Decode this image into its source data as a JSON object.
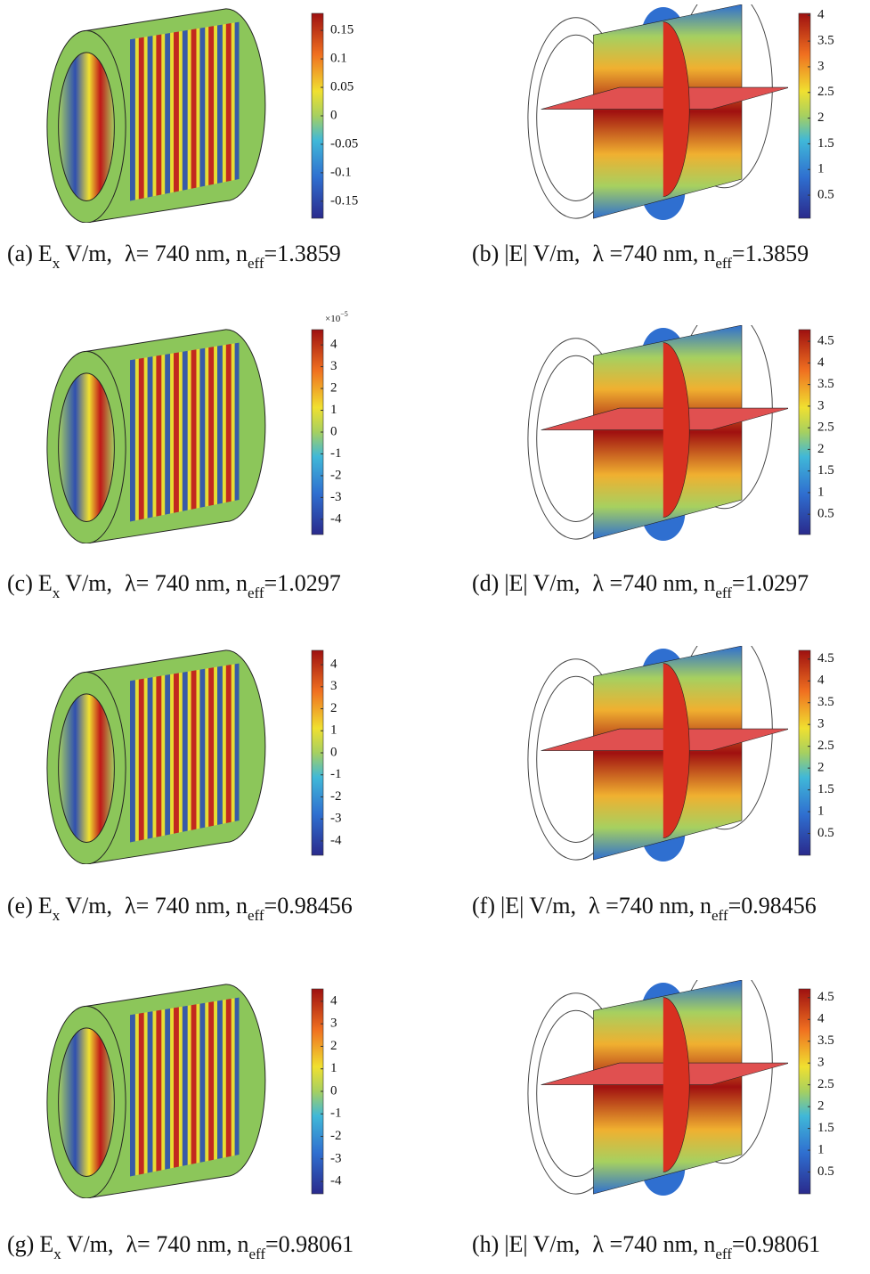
{
  "panels": [
    {
      "colorbar": {
        "lim": [
          -0.18,
          0.18
        ],
        "ticks": [
          0.15,
          0.1,
          0.05,
          0,
          -0.05,
          -0.1,
          -0.15
        ]
      },
      "caption": {
        "label": "(a)",
        "field": "E",
        "field_sub": "x",
        "unit": "V/m,",
        "wavelength": "λ= 740 nm,",
        "neff": "n",
        "neff_sub": "eff",
        "neff_value": "=1.3859"
      }
    },
    {
      "colorbar": {
        "lim": [
          0.05,
          4.04
        ],
        "ticks": [
          4,
          3.5,
          3,
          2.5,
          2,
          1.5,
          1,
          0.5
        ]
      },
      "caption": {
        "label": "(b)",
        "field": "|E|",
        "unit": "V/m,",
        "wavelength": "λ =740 nm,",
        "neff": "n",
        "neff_sub": "eff",
        "neff_value": "=1.3859"
      }
    },
    {
      "colorbar": {
        "lim": [
          -4.7,
          4.7
        ],
        "ticks": [
          4,
          3,
          2,
          1,
          0,
          -1,
          -2,
          -3,
          -4
        ],
        "exponent": {
          "base": "×10",
          "power": "−5"
        }
      },
      "caption": {
        "label": "(c)",
        "field": "E",
        "field_sub": "x",
        "unit": "V/m,",
        "wavelength": "λ= 740 nm,",
        "neff": "n",
        "neff_sub": "eff",
        "neff_value": "=1.0297"
      }
    },
    {
      "colorbar": {
        "lim": [
          0.03,
          4.77
        ],
        "ticks": [
          4.5,
          4,
          3.5,
          3,
          2.5,
          2,
          1.5,
          1,
          0.5
        ]
      },
      "caption": {
        "label": "(d)",
        "field": "|E|",
        "unit": "V/m,",
        "wavelength": "λ =740 nm,",
        "neff": "n",
        "neff_sub": "eff",
        "neff_value": "=1.0297"
      }
    },
    {
      "colorbar": {
        "lim": [
          -4.65,
          4.65
        ],
        "ticks": [
          4,
          3,
          2,
          1,
          0,
          -1,
          -2,
          -3,
          -4
        ]
      },
      "caption": {
        "label": "(e)",
        "field": "E",
        "field_sub": "x",
        "unit": "V/m,",
        "wavelength": "λ= 740 nm,",
        "neff": "n",
        "neff_sub": "eff",
        "neff_value": "=0.98456"
      }
    },
    {
      "colorbar": {
        "lim": [
          0,
          4.7
        ],
        "ticks": [
          4.5,
          4,
          3.5,
          3,
          2.5,
          2,
          1.5,
          1,
          0.5
        ]
      },
      "caption": {
        "label": "(f)",
        "field": "|E|",
        "unit": "V/m,",
        "wavelength": "λ =740 nm,",
        "neff": "n",
        "neff_sub": "eff",
        "neff_value": "=0.98456"
      }
    },
    {
      "colorbar": {
        "lim": [
          -4.55,
          4.55
        ],
        "ticks": [
          4,
          3,
          2,
          1,
          0,
          -1,
          -2,
          -3,
          -4
        ]
      },
      "caption": {
        "label": "(g)",
        "field": "E",
        "field_sub": "x",
        "unit": "V/m,",
        "wavelength": "λ= 740 nm,",
        "neff": "n",
        "neff_sub": "eff",
        "neff_value": "=0.98061"
      }
    },
    {
      "colorbar": {
        "lim": [
          0,
          4.7
        ],
        "ticks": [
          4.5,
          4,
          3.5,
          3,
          2.5,
          2,
          1.5,
          1,
          0.5
        ]
      },
      "caption": {
        "label": "(h)",
        "field": "|E|",
        "unit": "V/m,",
        "wavelength": "λ =740 nm,",
        "neff": "n",
        "neff_sub": "eff",
        "neff_value": "=0.98061"
      }
    }
  ]
}
